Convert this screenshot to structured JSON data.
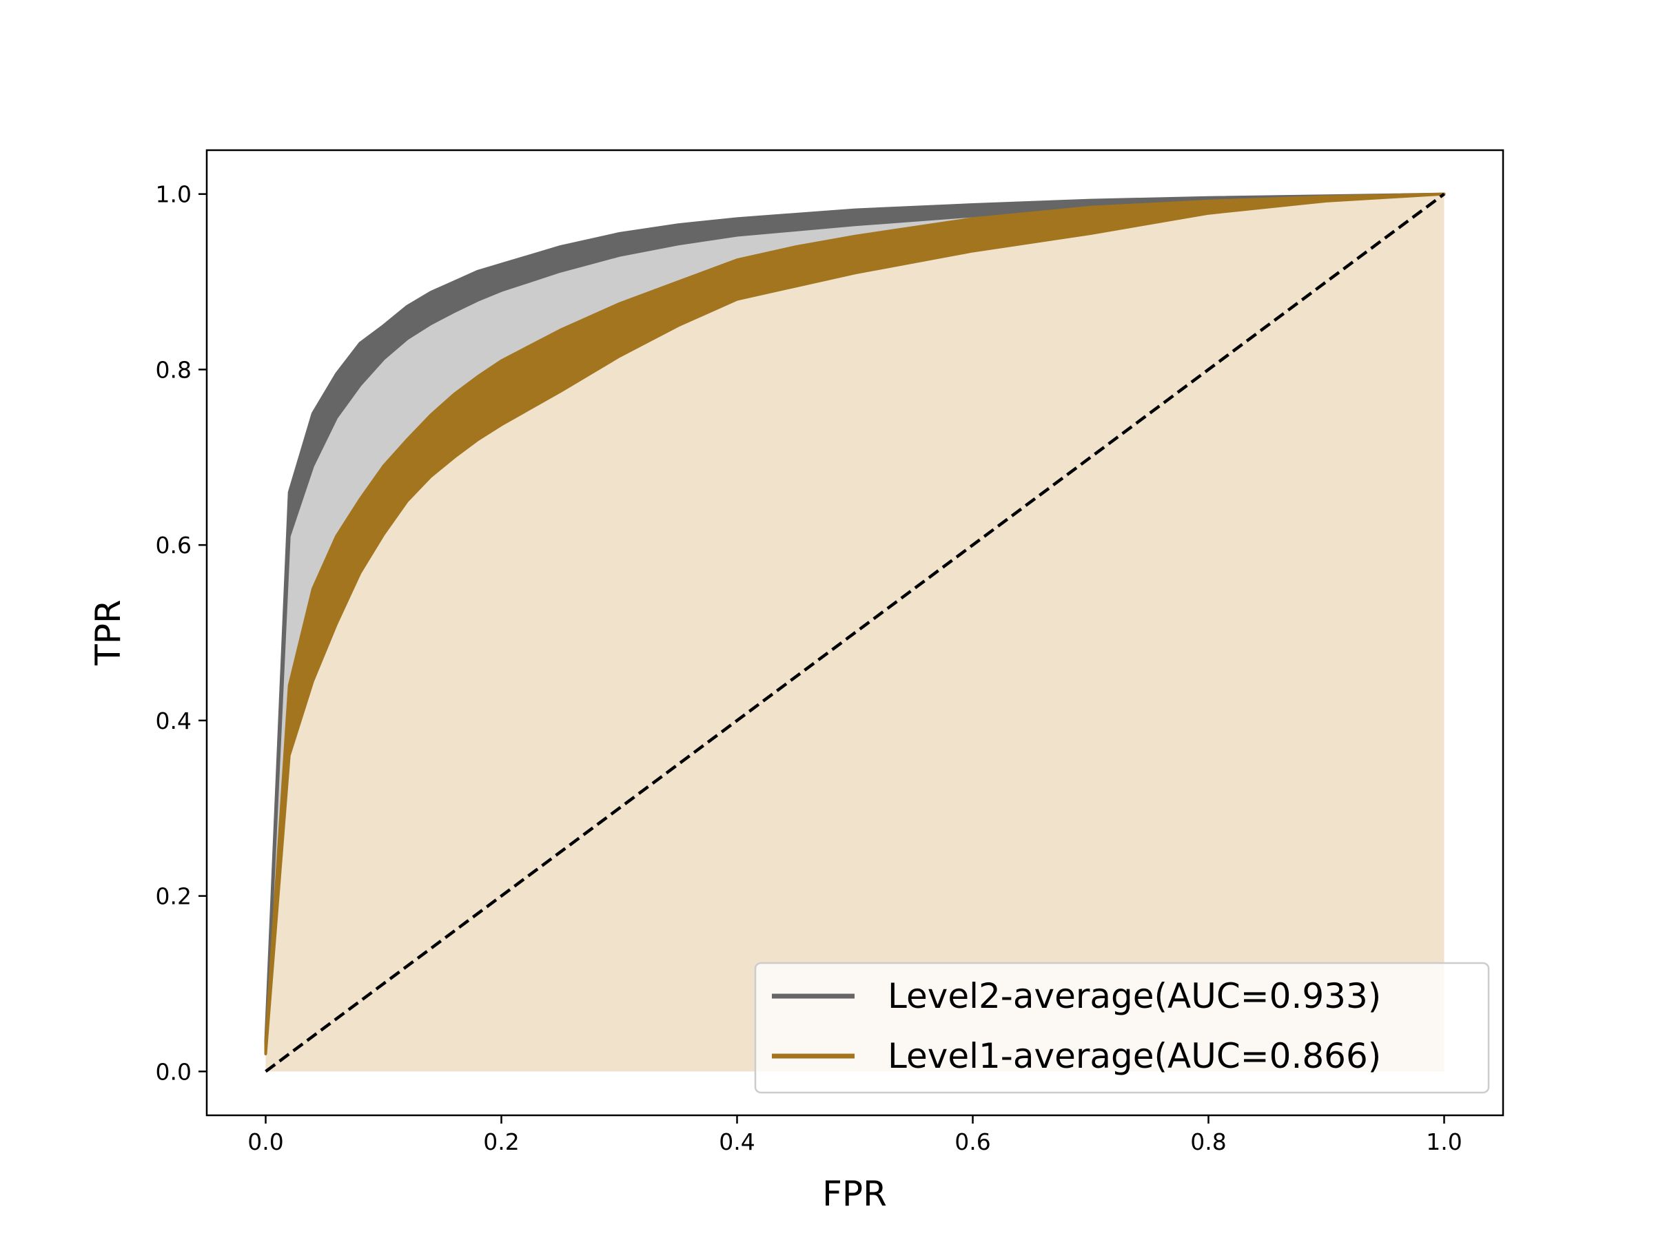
{
  "chart_data": {
    "type": "line",
    "title": "",
    "xlabel": "FPR",
    "ylabel": "TPR",
    "xlim": [
      -0.05,
      1.05
    ],
    "ylim": [
      -0.05,
      1.05
    ],
    "xticks": [
      {
        "value": 0.0,
        "label": "0.0"
      },
      {
        "value": 0.2,
        "label": "0.2"
      },
      {
        "value": 0.4,
        "label": "0.4"
      },
      {
        "value": 0.6,
        "label": "0.6"
      },
      {
        "value": 0.8,
        "label": "0.8"
      },
      {
        "value": 1.0,
        "label": "1.0"
      }
    ],
    "yticks": [
      {
        "value": 0.0,
        "label": "0.0"
      },
      {
        "value": 0.2,
        "label": "0.2"
      },
      {
        "value": 0.4,
        "label": "0.4"
      },
      {
        "value": 0.6,
        "label": "0.6"
      },
      {
        "value": 0.8,
        "label": "0.8"
      },
      {
        "value": 1.0,
        "label": "1.0"
      }
    ],
    "grid": false,
    "legend_position": "lower right",
    "series": [
      {
        "name": "Level2-average(AUC=0.933)",
        "color": "#666666",
        "band_color": "#cccccc",
        "x": [
          0.0,
          0.02,
          0.04,
          0.06,
          0.08,
          0.1,
          0.12,
          0.14,
          0.16,
          0.18,
          0.2,
          0.25,
          0.3,
          0.35,
          0.4,
          0.5,
          0.6,
          0.7,
          0.8,
          0.9,
          1.0
        ],
        "upper": [
          0.035,
          0.66,
          0.75,
          0.795,
          0.83,
          0.85,
          0.872,
          0.888,
          0.9,
          0.912,
          0.92,
          0.94,
          0.955,
          0.965,
          0.972,
          0.982,
          0.988,
          0.993,
          0.996,
          0.998,
          1.0
        ],
        "lower": [
          0.03,
          0.61,
          0.69,
          0.745,
          0.782,
          0.812,
          0.835,
          0.852,
          0.866,
          0.879,
          0.89,
          0.912,
          0.93,
          0.943,
          0.953,
          0.965,
          0.975,
          0.985,
          0.993,
          0.997,
          1.0
        ]
      },
      {
        "name": "Level1-average(AUC=0.866)",
        "color": "#a3751e",
        "band_color": "#f0e2cb",
        "x": [
          0.0,
          0.02,
          0.04,
          0.06,
          0.08,
          0.1,
          0.12,
          0.14,
          0.16,
          0.18,
          0.2,
          0.25,
          0.3,
          0.35,
          0.4,
          0.45,
          0.5,
          0.6,
          0.7,
          0.8,
          0.9,
          1.0
        ],
        "upper": [
          0.03,
          0.44,
          0.55,
          0.61,
          0.652,
          0.69,
          0.72,
          0.748,
          0.772,
          0.792,
          0.81,
          0.845,
          0.875,
          0.9,
          0.925,
          0.94,
          0.952,
          0.972,
          0.985,
          0.992,
          0.997,
          1.0
        ],
        "lower": [
          0.02,
          0.36,
          0.445,
          0.51,
          0.568,
          0.612,
          0.65,
          0.678,
          0.7,
          0.72,
          0.737,
          0.775,
          0.815,
          0.85,
          0.88,
          0.895,
          0.91,
          0.935,
          0.955,
          0.978,
          0.992,
          1.0
        ]
      },
      {
        "name": "",
        "color": "#000000",
        "dash": "dashed",
        "x": [
          0.0,
          1.0
        ],
        "y": [
          0.0,
          1.0
        ]
      }
    ]
  }
}
